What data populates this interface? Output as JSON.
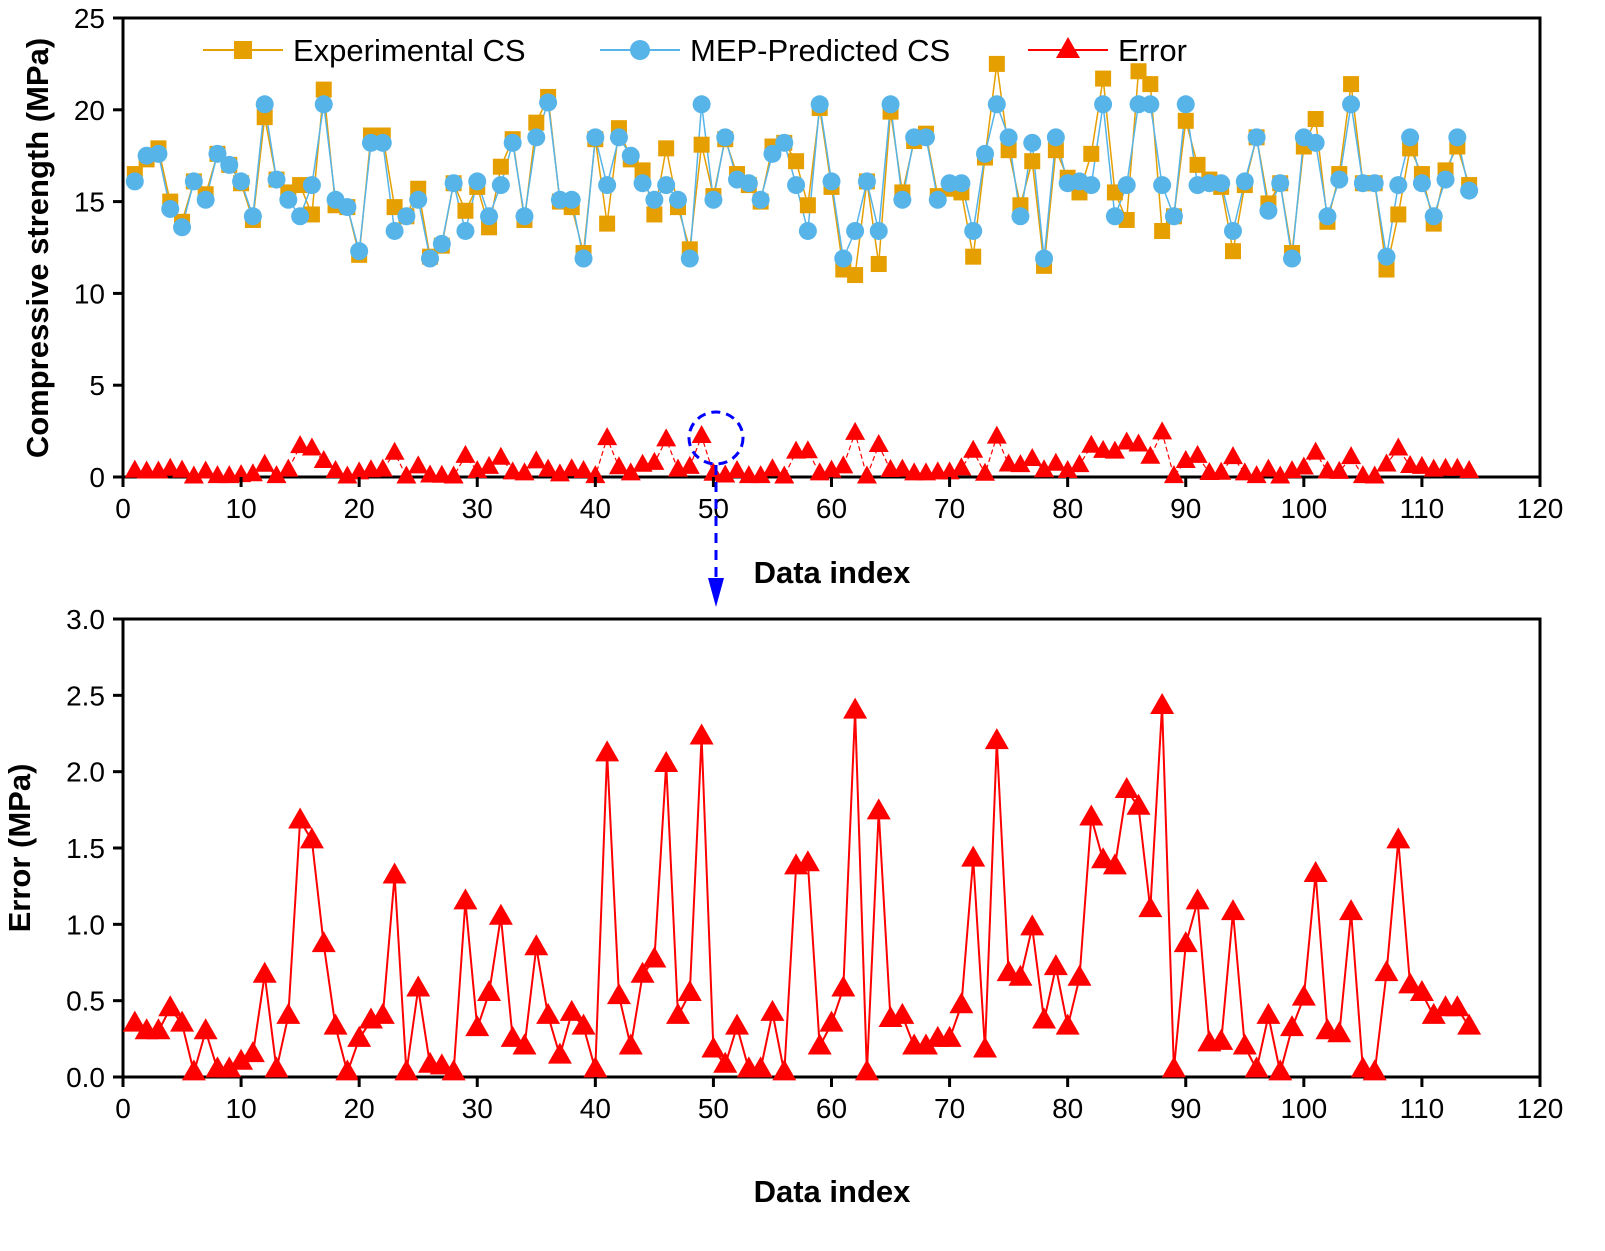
{
  "colors": {
    "experimental": "#E69F00",
    "predicted": "#56B4E9",
    "error": "#FF0000",
    "annotation": "#0000FF"
  },
  "chart_data": [
    {
      "type": "line",
      "xlabel": "Data index",
      "ylabel": "Compressive strength (MPa)",
      "xlim": [
        0,
        120
      ],
      "ylim": [
        0,
        25
      ],
      "xticks": [
        0,
        10,
        20,
        30,
        40,
        50,
        60,
        70,
        80,
        90,
        100,
        110,
        120
      ],
      "yticks": [
        0,
        5,
        10,
        15,
        20,
        25
      ],
      "grid": false,
      "legend": "top",
      "annotation": "dashed circle around index 50 with dashed arrow pointing to the lower chart",
      "x_start": 1,
      "series": [
        {
          "name": "Experimental CS",
          "marker": "square",
          "values": [
            16.5,
            17.3,
            17.9,
            15.0,
            13.9,
            16.1,
            15.4,
            17.6,
            17.0,
            16.0,
            14.0,
            19.6,
            16.2,
            15.5,
            15.9,
            14.3,
            21.1,
            14.8,
            14.7,
            12.1,
            18.6,
            18.6,
            14.7,
            14.2,
            15.7,
            12.0,
            12.6,
            16.0,
            14.5,
            15.8,
            13.6,
            16.9,
            18.4,
            14.0,
            19.3,
            20.7,
            15.0,
            14.7,
            12.2,
            18.4,
            13.8,
            19.0,
            17.3,
            16.7,
            14.3,
            17.9,
            14.7,
            12.4,
            18.1,
            15.3,
            18.4,
            16.5,
            15.9,
            15.0,
            18.0,
            18.2,
            17.2,
            14.8,
            20.1,
            15.8,
            11.3,
            11.0,
            16.1,
            11.6,
            19.9,
            15.5,
            18.3,
            18.7,
            15.3,
            15.7,
            15.5,
            12.0,
            17.4,
            22.5,
            17.8,
            14.8,
            17.2,
            11.5,
            17.8,
            16.3,
            15.5,
            17.6,
            21.7,
            15.5,
            14.0,
            22.1,
            21.4,
            13.4,
            14.2,
            19.4,
            17.0,
            16.2,
            15.8,
            12.3,
            15.9,
            18.5,
            14.9,
            16.0,
            12.2,
            18.0,
            19.5,
            13.9,
            16.5,
            21.4,
            16.0,
            16.0,
            11.3,
            14.3,
            17.9,
            16.5,
            13.8,
            16.7,
            18.0,
            15.9
          ]
        },
        {
          "name": "MEP-Predicted CS",
          "marker": "circle",
          "values": [
            16.1,
            17.5,
            17.6,
            14.6,
            13.6,
            16.1,
            15.1,
            17.6,
            17.0,
            16.1,
            14.2,
            20.3,
            16.2,
            15.1,
            14.2,
            15.9,
            20.3,
            15.1,
            14.7,
            12.3,
            18.2,
            18.2,
            13.4,
            14.2,
            15.1,
            11.9,
            12.7,
            16.0,
            13.4,
            16.1,
            14.2,
            15.9,
            18.2,
            14.2,
            18.5,
            20.4,
            15.1,
            15.1,
            11.9,
            18.5,
            15.9,
            18.5,
            17.5,
            16.0,
            15.1,
            15.9,
            15.1,
            11.9,
            20.3,
            15.1,
            18.5,
            16.2,
            16.0,
            15.1,
            17.6,
            18.2,
            15.9,
            13.4,
            20.3,
            16.1,
            11.9,
            13.4,
            16.1,
            13.4,
            20.3,
            15.1,
            18.5,
            18.5,
            15.1,
            16.0,
            16.0,
            13.4,
            17.6,
            20.3,
            18.5,
            14.2,
            18.2,
            11.9,
            18.5,
            16.0,
            16.1,
            15.9,
            20.3,
            14.2,
            15.9,
            20.3,
            20.3,
            15.9,
            14.2,
            20.3,
            15.9,
            16.0,
            16.0,
            13.4,
            16.1,
            18.5,
            14.5,
            16.0,
            11.9,
            18.5,
            18.2,
            14.2,
            16.2,
            20.3,
            16.0,
            16.0,
            12.0,
            15.9,
            18.5,
            16.0,
            14.2,
            16.2,
            18.5,
            15.6
          ]
        },
        {
          "name": "Error",
          "marker": "triangle",
          "ref": "error_values"
        }
      ]
    },
    {
      "type": "line",
      "xlabel": "Data index",
      "ylabel": "Error (MPa)",
      "xlim": [
        0,
        120
      ],
      "ylim": [
        0,
        3.0
      ],
      "xticks": [
        0,
        10,
        20,
        30,
        40,
        50,
        60,
        70,
        80,
        90,
        100,
        110,
        120
      ],
      "yticks": [
        "0.0",
        "0.5",
        "1.0",
        "1.5",
        "2.0",
        "2.5",
        "3.0"
      ],
      "grid": false,
      "x_start": 1,
      "error_values": [
        0.35,
        0.3,
        0.3,
        0.45,
        0.35,
        0.03,
        0.3,
        0.05,
        0.05,
        0.1,
        0.15,
        0.67,
        0.05,
        0.4,
        1.68,
        1.55,
        0.87,
        0.33,
        0.03,
        0.25,
        0.37,
        0.4,
        1.32,
        0.03,
        0.58,
        0.08,
        0.07,
        0.03,
        1.15,
        0.32,
        0.55,
        1.05,
        0.25,
        0.2,
        0.85,
        0.4,
        0.14,
        0.42,
        0.33,
        0.05,
        2.12,
        0.53,
        0.2,
        0.67,
        0.77,
        2.05,
        0.4,
        0.55,
        2.23,
        0.18,
        0.08,
        0.33,
        0.05,
        0.05,
        0.42,
        0.03,
        1.38,
        1.4,
        0.2,
        0.35,
        0.58,
        2.4,
        0.03,
        1.74,
        0.38,
        0.4,
        0.2,
        0.2,
        0.25,
        0.25,
        0.47,
        1.43,
        0.18,
        2.2,
        0.68,
        0.65,
        0.98,
        0.37,
        0.72,
        0.33,
        0.65,
        1.7,
        1.42,
        1.38,
        1.88,
        1.77,
        1.1,
        2.43,
        0.05,
        0.87,
        1.15,
        0.22,
        0.23,
        1.08,
        0.2,
        0.05,
        0.4,
        0.03,
        0.32,
        0.52,
        1.33,
        0.3,
        0.28,
        1.08,
        0.05,
        0.03,
        0.68,
        1.55,
        0.6,
        0.55,
        0.4,
        0.45,
        0.45,
        0.33
      ]
    }
  ]
}
